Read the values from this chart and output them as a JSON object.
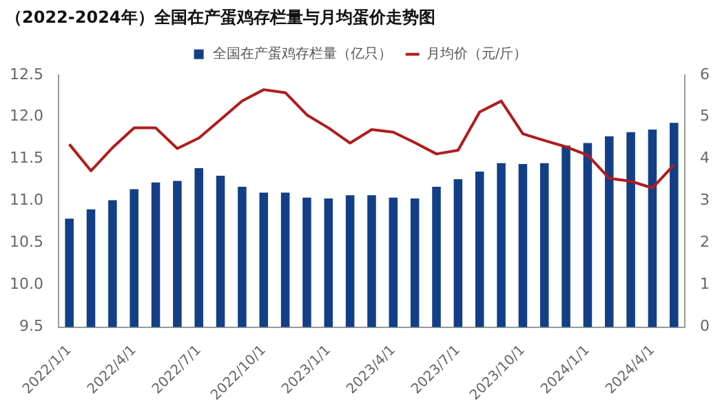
{
  "chart_data": {
    "type": "bar",
    "title": "（2022-2024年）全国在产蛋鸡存栏量与月均蛋价走势图",
    "categories": [
      "2022/1/1",
      null,
      null,
      "2022/4/1",
      null,
      null,
      "2022/7/1",
      null,
      null,
      "2022/10/1",
      null,
      null,
      "2023/1/1",
      null,
      null,
      "2023/4/1",
      null,
      null,
      "2023/7/1",
      null,
      null,
      "2023/10/1",
      null,
      null,
      "2024/1/1",
      null,
      null,
      "2024/4/1",
      null
    ],
    "series": [
      {
        "name": "全国在产蛋鸡存栏量（亿只）",
        "color": "#123f87",
        "values": [
          10.79,
          10.9,
          11.01,
          11.14,
          11.22,
          11.24,
          11.39,
          11.3,
          11.17,
          11.1,
          11.1,
          11.04,
          11.03,
          11.07,
          11.07,
          11.04,
          11.03,
          11.17,
          11.26,
          11.35,
          11.45,
          11.44,
          11.45,
          11.66,
          11.69,
          11.77,
          11.82,
          11.85,
          11.93
        ]
      },
      {
        "name": "月均价（元/斤）",
        "type": "line",
        "axis": "y2",
        "color": "#b01c1c",
        "values": [
          4.35,
          3.72,
          4.27,
          4.74,
          4.74,
          4.25,
          4.5,
          4.94,
          5.38,
          5.65,
          5.58,
          5.05,
          4.74,
          4.38,
          4.7,
          4.64,
          4.39,
          4.12,
          4.21,
          5.12,
          5.38,
          4.6,
          4.44,
          4.29,
          4.09,
          3.54,
          3.47,
          3.31,
          3.86
        ]
      }
    ],
    "ylim": [
      9.5,
      12.5
    ],
    "yticks": [
      9.5,
      {
        "value": 10,
        "label": "10.0"
      },
      10.5,
      {
        "value": 11,
        "label": "11.0"
      },
      11.5,
      {
        "value": 12,
        "label": "12.0"
      },
      12.5
    ],
    "y2lim": [
      0,
      6
    ],
    "y2ticks": [
      0,
      1,
      2,
      3,
      4,
      5,
      6
    ],
    "grid": false,
    "legend": "top",
    "marker": "none",
    "line_style": "solid"
  }
}
